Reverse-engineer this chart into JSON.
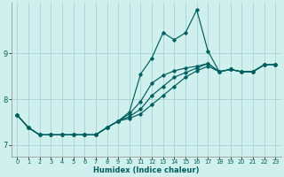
{
  "xlabel": "Humidex (Indice chaleur)",
  "xlim": [
    -0.5,
    23.5
  ],
  "ylim": [
    6.75,
    10.1
  ],
  "yticks": [
    7,
    8,
    9
  ],
  "xticks": [
    0,
    1,
    2,
    3,
    4,
    5,
    6,
    7,
    8,
    9,
    10,
    11,
    12,
    13,
    14,
    15,
    16,
    17,
    18,
    19,
    20,
    21,
    22,
    23
  ],
  "background_color": "#cff0ec",
  "grid_color": "#aad8d2",
  "line_color": "#005f5f",
  "series": [
    [
      7.65,
      7.38,
      7.22,
      7.22,
      7.22,
      7.22,
      7.22,
      7.22,
      7.38,
      7.52,
      7.72,
      8.55,
      8.9,
      9.45,
      9.3,
      9.45,
      9.95,
      9.05,
      8.6,
      8.65,
      8.6,
      8.6,
      8.75,
      8.75
    ],
    [
      7.65,
      7.38,
      7.22,
      7.22,
      7.22,
      7.22,
      7.22,
      7.22,
      7.38,
      7.52,
      7.68,
      7.95,
      8.35,
      8.52,
      8.62,
      8.68,
      8.72,
      8.78,
      8.6,
      8.65,
      8.6,
      8.6,
      8.75,
      8.75
    ],
    [
      7.65,
      7.38,
      7.22,
      7.22,
      7.22,
      7.22,
      7.22,
      7.22,
      7.38,
      7.52,
      7.62,
      7.78,
      8.08,
      8.28,
      8.48,
      8.58,
      8.68,
      8.78,
      8.6,
      8.65,
      8.6,
      8.6,
      8.75,
      8.75
    ],
    [
      7.65,
      7.38,
      7.22,
      7.22,
      7.22,
      7.22,
      7.22,
      7.22,
      7.38,
      7.52,
      7.58,
      7.68,
      7.88,
      8.08,
      8.28,
      8.48,
      8.62,
      8.72,
      8.6,
      8.65,
      8.6,
      8.6,
      8.75,
      8.75
    ]
  ]
}
